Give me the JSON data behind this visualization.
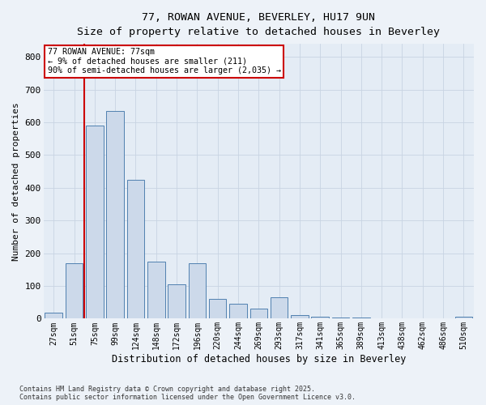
{
  "title_line1": "77, ROWAN AVENUE, BEVERLEY, HU17 9UN",
  "title_line2": "Size of property relative to detached houses in Beverley",
  "xlabel": "Distribution of detached houses by size in Beverley",
  "ylabel": "Number of detached properties",
  "categories": [
    "27sqm",
    "51sqm",
    "75sqm",
    "99sqm",
    "124sqm",
    "148sqm",
    "172sqm",
    "196sqm",
    "220sqm",
    "244sqm",
    "269sqm",
    "293sqm",
    "317sqm",
    "341sqm",
    "365sqm",
    "389sqm",
    "413sqm",
    "438sqm",
    "462sqm",
    "486sqm",
    "510sqm"
  ],
  "bar_heights": [
    18,
    170,
    590,
    635,
    425,
    175,
    105,
    170,
    60,
    45,
    30,
    65,
    10,
    5,
    3,
    3,
    2,
    2,
    1,
    1,
    5
  ],
  "bar_color": "#ccd9ea",
  "bar_edge_color": "#5080b0",
  "vline_color": "#cc0000",
  "vline_x": 2,
  "annotation_title": "77 ROWAN AVENUE: 77sqm",
  "annotation_line2": "← 9% of detached houses are smaller (211)",
  "annotation_line3": "90% of semi-detached houses are larger (2,035) →",
  "annotation_box_color": "#ffffff",
  "annotation_border_color": "#cc0000",
  "ylim": [
    0,
    840
  ],
  "yticks": [
    0,
    100,
    200,
    300,
    400,
    500,
    600,
    700,
    800
  ],
  "grid_color": "#c8d4e3",
  "bg_color": "#e4ecf5",
  "fig_bg_color": "#edf2f8",
  "footer_line1": "Contains HM Land Registry data © Crown copyright and database right 2025.",
  "footer_line2": "Contains public sector information licensed under the Open Government Licence v3.0."
}
